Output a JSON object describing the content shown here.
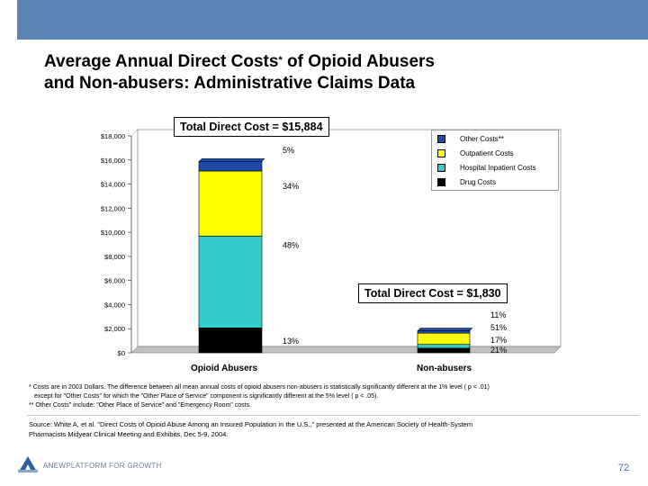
{
  "title": {
    "line1": "Average Annual Direct Costs",
    "superscript": "*",
    "line1_end": " of Opioid Abusers",
    "line2": "and Non-abusers: Administrative Claims Data"
  },
  "callouts": {
    "abusers_total": "Total Direct Cost = $15,884",
    "nonabusers_total": "Total Direct Cost = $1,830"
  },
  "colors": {
    "drug": "#000000",
    "hospital": "#33cccc",
    "outpatient": "#ffff00",
    "other": "#1f4ba8",
    "band": "#5b83b3"
  },
  "chart_data": {
    "type": "bar",
    "stacked": true,
    "categories": [
      "Opioid Abusers",
      "Non-abusers"
    ],
    "ylim": [
      0,
      18000
    ],
    "yticks": [
      0,
      2000,
      4000,
      6000,
      8000,
      10000,
      12000,
      14000,
      16000,
      18000
    ],
    "ytick_labels": [
      "$0",
      "$2,000",
      "$4,000",
      "$6,000",
      "$8,000",
      "$10,000",
      "$12,000",
      "$14,000",
      "$16,000",
      "$18,000"
    ],
    "legend_position": "top-right",
    "series": [
      {
        "name": "Drug Costs",
        "values": [
          2065,
          384
        ],
        "labels": [
          "13%",
          "21%"
        ]
      },
      {
        "name": "Hospital Inpatient Costs",
        "values": [
          7624,
          311
        ],
        "labels": [
          "48%",
          "17%"
        ]
      },
      {
        "name": "Outpatient Costs",
        "values": [
          5401,
          933
        ],
        "labels": [
          "34%",
          "51%"
        ]
      },
      {
        "name": "Other Costs**",
        "values": [
          794,
          201
        ],
        "labels": [
          "5%",
          "11%"
        ]
      }
    ],
    "totals": [
      15884,
      1830
    ]
  },
  "legend": {
    "items": [
      "Other Costs**",
      "Outpatient Costs",
      "Hospital Inpatient Costs",
      "Drug Costs"
    ]
  },
  "footnotes": {
    "line1": "* Costs are in 2003 Dollars. The difference between all mean annual costs of opioid abusers non-abusers is statistically significantly different at the 1% level ( p < .01)",
    "line2": "except for \"Other Costs\" for which the \"Other Place of Service\" component is significantly different at the 5% level ( p < .05).",
    "line3": "** Other Costs\" include: \"Other Place of Service\" and \"Emergency Room\" costs."
  },
  "source": {
    "line1": "Source: White A, et al. \"Direct Costs of Opioid Abuse Among an Insured Population in the U.S.,\" presented at the American Society of Health-System",
    "line2": "Pharmacists Midyear Clinical Meeting and Exhibits, Dec 5-9, 2004."
  },
  "logo_text": "ANEWPLATFORM FOR GROWTH",
  "page_number": "72"
}
